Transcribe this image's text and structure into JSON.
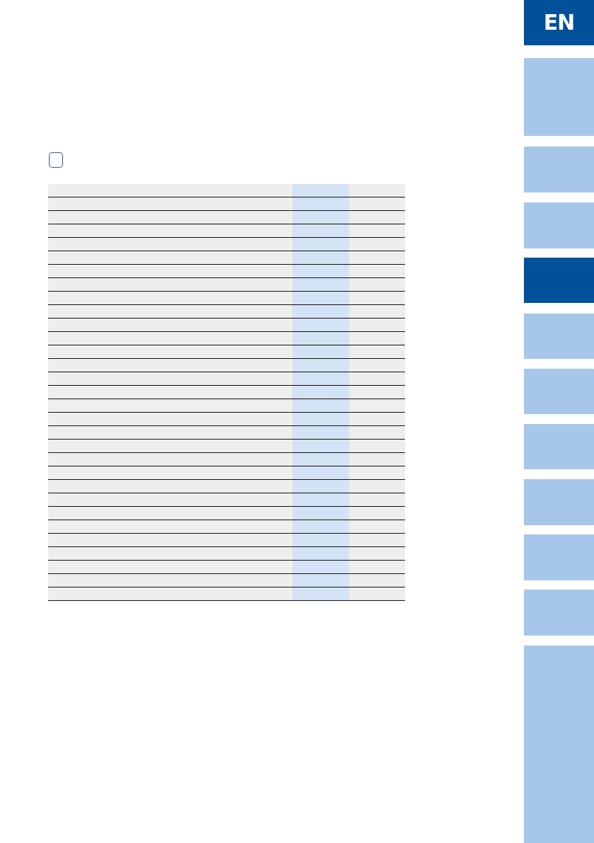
{
  "language_tab": {
    "label": "EN",
    "color": "#00509a"
  },
  "side_tabs": {
    "count": 11,
    "active_index": 3,
    "inactive_color": "#a7c7ea",
    "active_color": "#00509a"
  },
  "table": {
    "columns": 3,
    "rows": 31,
    "highlight_column": 2,
    "highlight_color": "#d3e3f5"
  }
}
